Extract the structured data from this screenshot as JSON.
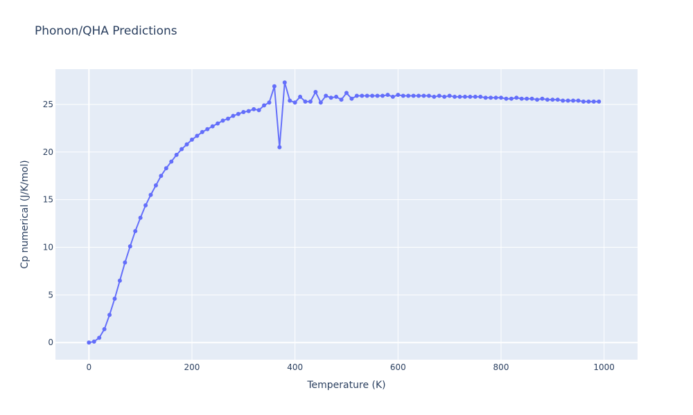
{
  "chart_data": {
    "type": "line",
    "title": "Phonon/QHA Predictions",
    "xlabel": "Temperature (K)",
    "ylabel": "Cp numerical (J/K/mol)",
    "xlim": [
      -65,
      1065
    ],
    "ylim": [
      -1.8,
      28.7
    ],
    "xticks": [
      0,
      200,
      400,
      600,
      800,
      1000
    ],
    "yticks": [
      0,
      5,
      10,
      15,
      20,
      25
    ],
    "grid": true,
    "mode": "lines+markers",
    "color": "#636efa",
    "series": [
      {
        "x": [
          0,
          10,
          20,
          30,
          40,
          50,
          60,
          70,
          80,
          90,
          100,
          110,
          120,
          130,
          140,
          150,
          160,
          170,
          180,
          190,
          200,
          210,
          220,
          230,
          240,
          250,
          260,
          270,
          280,
          290,
          300,
          310,
          320,
          330,
          340,
          350,
          360,
          370,
          380,
          390,
          400,
          410,
          420,
          430,
          440,
          450,
          460,
          470,
          480,
          490,
          500,
          510,
          520,
          530,
          540,
          550,
          560,
          570,
          580,
          590,
          600,
          610,
          620,
          630,
          640,
          650,
          660,
          670,
          680,
          690,
          700,
          710,
          720,
          730,
          740,
          750,
          760,
          770,
          780,
          790,
          800,
          810,
          820,
          830,
          840,
          850,
          860,
          870,
          880,
          890,
          900,
          910,
          920,
          930,
          940,
          950,
          960,
          970,
          980,
          990
        ],
        "y": [
          0.0,
          0.1,
          0.5,
          1.4,
          2.9,
          4.6,
          6.5,
          8.4,
          10.1,
          11.7,
          13.1,
          14.4,
          15.5,
          16.5,
          17.5,
          18.3,
          19.0,
          19.7,
          20.3,
          20.8,
          21.3,
          21.7,
          22.1,
          22.4,
          22.7,
          23.0,
          23.3,
          23.5,
          23.8,
          24.0,
          24.2,
          24.3,
          24.5,
          24.4,
          24.9,
          25.2,
          26.9,
          20.5,
          27.3,
          25.4,
          25.2,
          25.8,
          25.3,
          25.3,
          26.3,
          25.2,
          25.9,
          25.7,
          25.8,
          25.5,
          26.2,
          25.6,
          25.9,
          25.9,
          25.9,
          25.9,
          25.9,
          25.9,
          26.0,
          25.8,
          26.0,
          25.9,
          25.9,
          25.9,
          25.9,
          25.9,
          25.9,
          25.8,
          25.9,
          25.8,
          25.9,
          25.8,
          25.8,
          25.8,
          25.8,
          25.8,
          25.8,
          25.7,
          25.7,
          25.7,
          25.7,
          25.6,
          25.6,
          25.7,
          25.6,
          25.6,
          25.6,
          25.5,
          25.6,
          25.5,
          25.5,
          25.5,
          25.4,
          25.4,
          25.4,
          25.4,
          25.3,
          25.3,
          25.3,
          25.3
        ]
      }
    ]
  }
}
